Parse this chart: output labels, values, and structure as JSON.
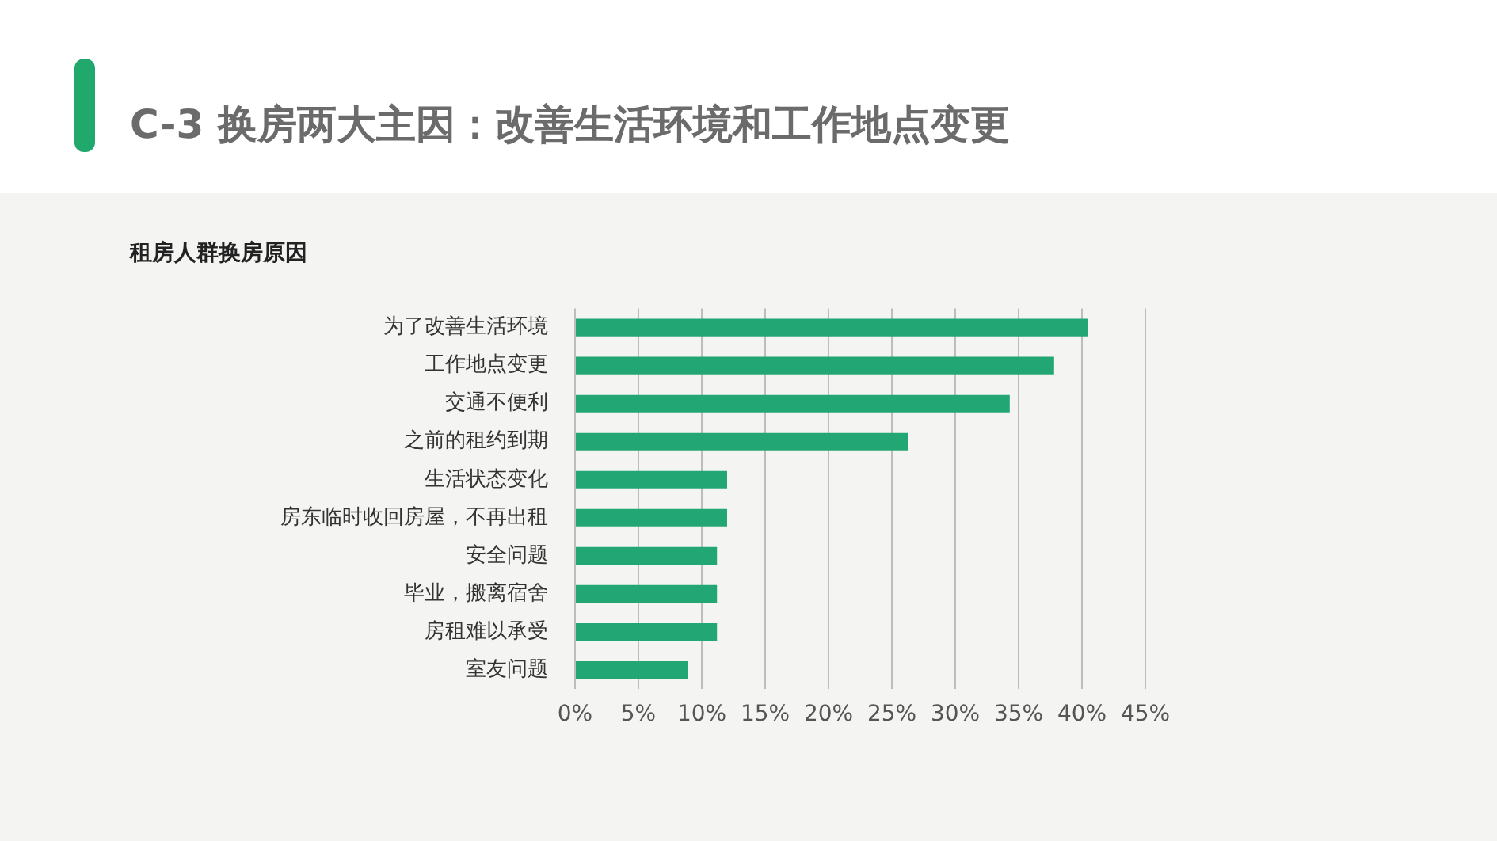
{
  "chart_data": {
    "type": "bar",
    "orientation": "horizontal",
    "title": "C-3 换房两大主因：改善生活环境和工作地点变更",
    "subtitle": "租房人群换房原因",
    "categories": [
      "为了改善生活环境",
      "工作地点变更",
      "交通不便利",
      "之前的租约到期",
      "生活状态变化",
      "房东临时收回房屋，不再出租",
      "安全问题",
      "毕业，搬离宿舍",
      "房租难以承受",
      "室友问题"
    ],
    "values": [
      40.5,
      37.8,
      34.3,
      26.3,
      12.0,
      12.0,
      11.2,
      11.2,
      11.2,
      8.9
    ],
    "color": "#22a673",
    "xlim": [
      0,
      45
    ],
    "xticks": [
      {
        "value": 0,
        "label": "0%"
      },
      {
        "value": 5,
        "label": "5%"
      },
      {
        "value": 10,
        "label": "10%"
      },
      {
        "value": 15,
        "label": "15%"
      },
      {
        "value": 20,
        "label": "20%"
      },
      {
        "value": 25,
        "label": "25%"
      },
      {
        "value": 30,
        "label": "30%"
      },
      {
        "value": 35,
        "label": "35%"
      },
      {
        "value": 40,
        "label": "40%"
      },
      {
        "value": 45,
        "label": "45%"
      }
    ],
    "grid": "x"
  }
}
